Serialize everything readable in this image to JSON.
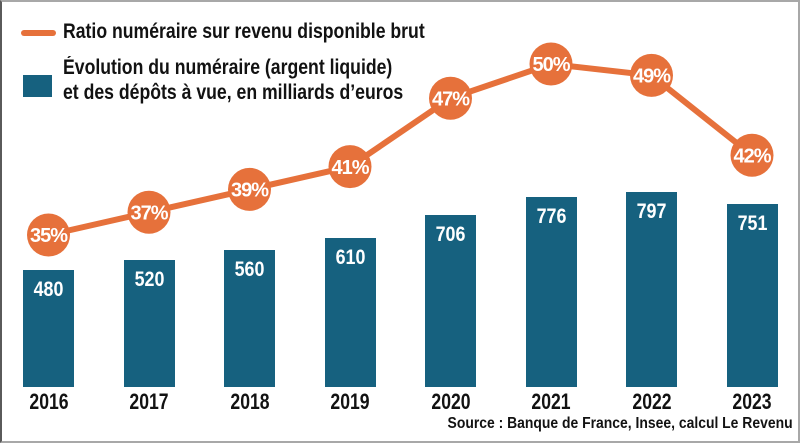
{
  "legend": {
    "ratio_label": "Ratio numéraire sur revenu disponible brut",
    "bars_label_line1": "Évolution du numéraire (argent liquide)",
    "bars_label_line2": "et des dépôts à vue, en milliards d’euros"
  },
  "source": "Source : Banque de France, Insee, calcul Le Revenu",
  "colors": {
    "orange": "#e6713b",
    "teal": "#16617f"
  },
  "chart_data": {
    "type": "bar",
    "title": "",
    "xlabel": "",
    "ylabel": "",
    "categories": [
      "2016",
      "2017",
      "2018",
      "2019",
      "2020",
      "2021",
      "2022",
      "2023"
    ],
    "series": [
      {
        "name": "Ratio numéraire sur revenu disponible brut",
        "type": "line",
        "unit": "%",
        "color": "#e6713b",
        "values": [
          35,
          37,
          39,
          41,
          47,
          50,
          49,
          42
        ]
      },
      {
        "name": "Évolution du numéraire (argent liquide) et des dépôts à vue, en milliards d’euros",
        "type": "bar",
        "unit": "milliards d’euros",
        "color": "#16617f",
        "values": [
          480,
          520,
          560,
          610,
          706,
          776,
          797,
          751
        ]
      }
    ],
    "layout_hints": {
      "legend_position": "top-left",
      "grid": false,
      "bar_value_labels": "inside-top, white",
      "line_point_labels": "orange circle badges with white percent text",
      "ylim_bars": [
        0,
        850
      ]
    }
  }
}
